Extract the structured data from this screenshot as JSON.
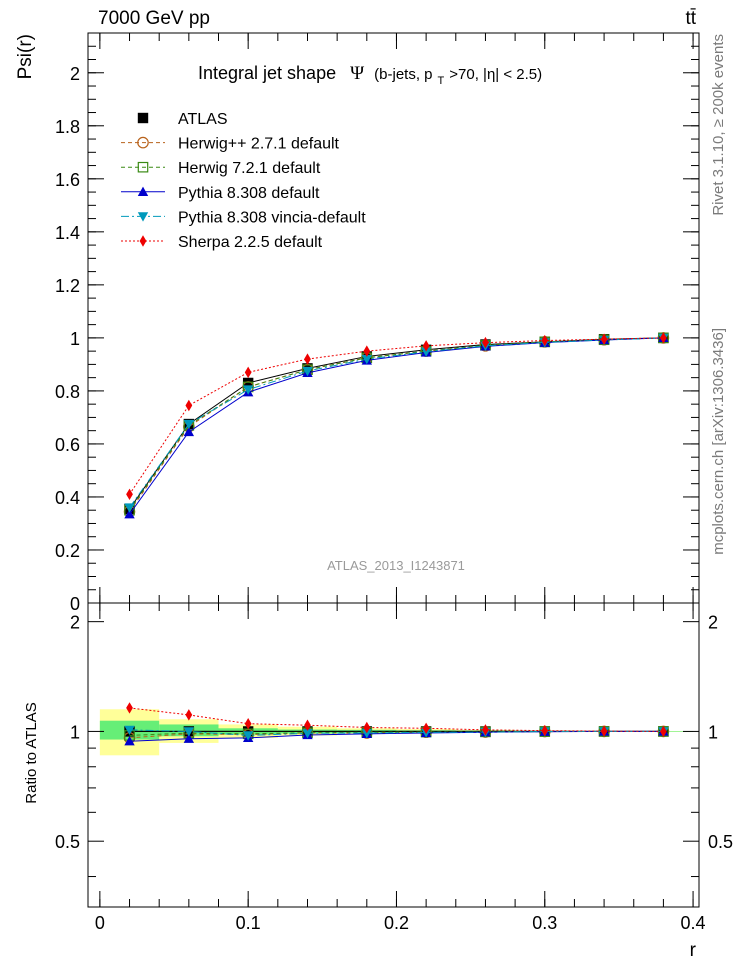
{
  "header": {
    "left": "7000 GeV pp",
    "right": "tt̄"
  },
  "side_labels": {
    "top": "Rivet 3.1.10, ≥ 200k events",
    "bottom": "mcplots.cern.ch [arXiv:1306.3436]"
  },
  "chart_data": [
    {
      "type": "line",
      "panel": "main",
      "title": "Integral jet shape",
      "title_symbol": "Ψ",
      "title_suffix": "(b-jets, p",
      "title_sub": "T",
      "title_end": ">70, |η| < 2.5)",
      "ylabel": "Psi(r)",
      "watermark": "ATLAS_2013_I1243871",
      "xlim": [
        -0.008,
        0.404
      ],
      "ylim": [
        0,
        2.15
      ],
      "yticks": [
        0,
        0.2,
        0.4,
        0.6,
        0.8,
        1,
        1.2,
        1.4,
        1.6,
        1.8,
        2
      ],
      "ytick_labels": [
        "0",
        "0.2",
        "0.4",
        "0.6",
        "0.8",
        "1",
        "1.2",
        "1.4",
        "1.6",
        "1.8",
        "2"
      ],
      "x": [
        0.02,
        0.06,
        0.1,
        0.14,
        0.18,
        0.22,
        0.26,
        0.3,
        0.34,
        0.38
      ],
      "legend_position": "top-left",
      "series": [
        {
          "name": "ATLAS",
          "color": "#000000",
          "marker": "square-filled",
          "dash": "none",
          "values": [
            0.355,
            0.675,
            0.83,
            0.885,
            0.93,
            0.955,
            0.975,
            0.985,
            0.995,
            1.0
          ]
        },
        {
          "name": "Herwig++ 2.7.1 default",
          "color": "#b8621b",
          "marker": "circle-open",
          "dash": "4,3",
          "values": [
            0.345,
            0.665,
            0.815,
            0.88,
            0.925,
            0.95,
            0.97,
            0.985,
            0.993,
            1.0
          ]
        },
        {
          "name": "Herwig 7.2.1 default",
          "color": "#3a8a14",
          "marker": "square-open",
          "dash": "4,3",
          "values": [
            0.35,
            0.67,
            0.815,
            0.88,
            0.925,
            0.95,
            0.972,
            0.985,
            0.993,
            1.0
          ]
        },
        {
          "name": "Pythia 8.308 default",
          "color": "#0000cc",
          "marker": "triangle-up",
          "dash": "none",
          "values": [
            0.335,
            0.645,
            0.795,
            0.868,
            0.915,
            0.945,
            0.968,
            0.982,
            0.992,
            1.0
          ]
        },
        {
          "name": "Pythia 8.308 vincia-default",
          "color": "#0099bb",
          "marker": "triangle-down",
          "dash": "8,3,2,3",
          "values": [
            0.36,
            0.675,
            0.805,
            0.875,
            0.92,
            0.948,
            0.97,
            0.983,
            0.992,
            1.0
          ]
        },
        {
          "name": "Sherpa 2.2.5 default",
          "color": "#ee0000",
          "marker": "diamond",
          "dash": "2,2",
          "values": [
            0.41,
            0.745,
            0.87,
            0.92,
            0.95,
            0.97,
            0.982,
            0.99,
            0.995,
            1.0
          ]
        }
      ]
    },
    {
      "type": "line",
      "panel": "ratio",
      "ylabel": "Ratio to ATLAS",
      "xlabel": "r",
      "xlim": [
        -0.008,
        0.404
      ],
      "ylim": [
        0.33,
        2.25
      ],
      "yticks": [
        0.5,
        1,
        2
      ],
      "ytick_labels": [
        "0.5",
        "1",
        "2"
      ],
      "xticks": [
        0,
        0.1,
        0.2,
        0.3,
        0.4
      ],
      "xtick_labels": [
        "0",
        "0.1",
        "0.2",
        "0.3",
        "0.4"
      ],
      "x": [
        0.02,
        0.06,
        0.1,
        0.14,
        0.18,
        0.22,
        0.26,
        0.3,
        0.34,
        0.38
      ],
      "bands": [
        {
          "name": "total",
          "color": "#ffff99",
          "bins": [
            [
              0.0,
              0.04,
              0.86,
              1.15
            ],
            [
              0.04,
              0.08,
              0.93,
              1.08
            ],
            [
              0.08,
              0.12,
              0.96,
              1.045
            ],
            [
              0.12,
              0.16,
              0.975,
              1.03
            ],
            [
              0.16,
              0.2,
              0.985,
              1.02
            ],
            [
              0.2,
              0.24,
              0.99,
              1.015
            ],
            [
              0.24,
              0.28,
              0.993,
              1.01
            ],
            [
              0.28,
              0.32,
              0.996,
              1.005
            ],
            [
              0.32,
              0.36,
              0.998,
              1.003
            ],
            [
              0.36,
              0.4,
              0.999,
              1.001
            ]
          ]
        },
        {
          "name": "stat",
          "color": "#66ee77",
          "bins": [
            [
              0.0,
              0.04,
              0.95,
              1.07
            ],
            [
              0.04,
              0.08,
              0.97,
              1.045
            ],
            [
              0.08,
              0.12,
              0.98,
              1.02
            ],
            [
              0.12,
              0.16,
              0.987,
              1.012
            ],
            [
              0.16,
              0.2,
              0.99,
              1.01
            ],
            [
              0.2,
              0.24,
              0.993,
              1.007
            ],
            [
              0.24,
              0.28,
              0.995,
              1.005
            ],
            [
              0.28,
              0.32,
              0.997,
              1.003
            ],
            [
              0.32,
              0.36,
              0.998,
              1.002
            ],
            [
              0.36,
              0.4,
              0.999,
              1.001
            ]
          ]
        }
      ],
      "series": [
        {
          "name": "ATLAS",
          "color": "#000000",
          "marker": "square-filled",
          "dash": "none",
          "values": [
            1,
            1,
            1,
            1,
            1,
            1,
            1,
            1,
            1,
            1
          ]
        },
        {
          "name": "Herwig++ 2.7.1 default",
          "color": "#b8621b",
          "marker": "circle-open",
          "dash": "4,3",
          "values": [
            0.96,
            0.985,
            0.98,
            0.99,
            0.99,
            0.995,
            0.996,
            0.999,
            1.0,
            1.0
          ]
        },
        {
          "name": "Herwig 7.2.1 default",
          "color": "#3a8a14",
          "marker": "square-open",
          "dash": "4,3",
          "values": [
            0.975,
            0.99,
            0.985,
            0.992,
            0.995,
            0.996,
            0.997,
            0.999,
            1.0,
            1.0
          ]
        },
        {
          "name": "Pythia 8.308 default",
          "color": "#0000cc",
          "marker": "triangle-up",
          "dash": "none",
          "values": [
            0.94,
            0.955,
            0.96,
            0.978,
            0.985,
            0.99,
            0.995,
            0.998,
            1.0,
            1.0
          ]
        },
        {
          "name": "Pythia 8.308 vincia-default",
          "color": "#0099bb",
          "marker": "triangle-down",
          "dash": "8,3,2,3",
          "values": [
            1.01,
            1.0,
            0.975,
            0.988,
            0.99,
            0.994,
            0.996,
            0.999,
            1.0,
            1.0
          ]
        },
        {
          "name": "Sherpa 2.2.5 default",
          "color": "#ee0000",
          "marker": "diamond",
          "dash": "2,2",
          "values": [
            1.16,
            1.11,
            1.05,
            1.04,
            1.025,
            1.02,
            1.01,
            1.005,
            1.002,
            1.0
          ]
        }
      ]
    }
  ]
}
